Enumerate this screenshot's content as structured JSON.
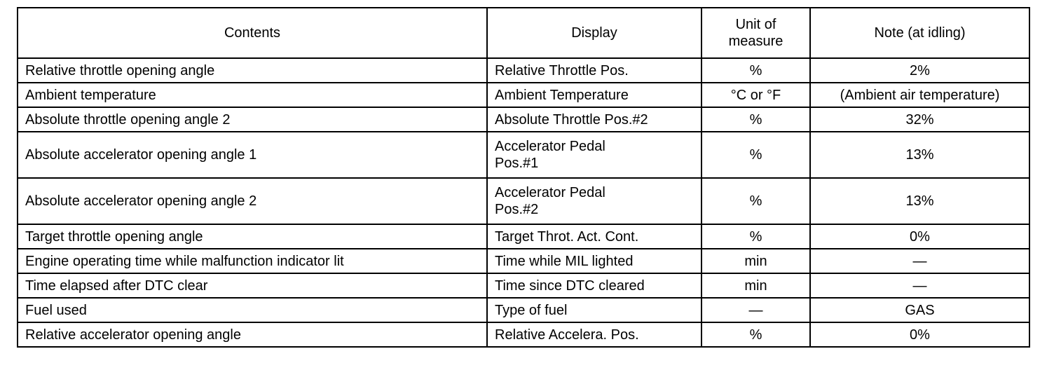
{
  "table": {
    "headers": [
      "Contents",
      "Display",
      "Unit of measure",
      "Note (at idling)"
    ],
    "rows": [
      [
        "Relative throttle opening angle",
        "Relative Throttle Pos.",
        "%",
        "2%"
      ],
      [
        "Ambient temperature",
        "Ambient Temperature",
        "°C or °F",
        "(Ambient air temperature)"
      ],
      [
        "Absolute throttle opening angle 2",
        "Absolute Throttle Pos.#2",
        "%",
        "32%"
      ],
      [
        "Absolute accelerator opening angle 1",
        "Accelerator Pedal Pos.#1",
        "%",
        "13%"
      ],
      [
        "Absolute accelerator opening angle 2",
        "Accelerator Pedal Pos.#2",
        "%",
        "13%"
      ],
      [
        "Target throttle opening angle",
        "Target Throt. Act. Cont.",
        "%",
        "0%"
      ],
      [
        "Engine operating time while malfunction indicator lit",
        "Time while MIL lighted",
        "min",
        "—"
      ],
      [
        "Time elapsed after DTC clear",
        "Time since DTC cleared",
        "min",
        "—"
      ],
      [
        "Fuel used",
        "Type of fuel",
        "—",
        "GAS"
      ],
      [
        "Relative accelerator opening angle",
        "Relative Accelera. Pos.",
        "%",
        "0%"
      ]
    ]
  }
}
